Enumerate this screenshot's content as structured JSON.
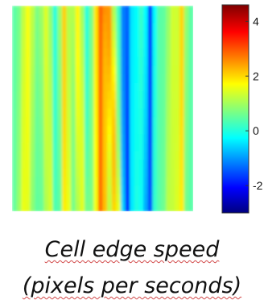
{
  "chart_data": {
    "type": "heatmap",
    "title": "",
    "xlabel": "",
    "ylabel": "",
    "colormap": "jet",
    "color_range": [
      -3,
      4.6
    ],
    "colorbar_ticks": [
      {
        "value": 4,
        "label": "4"
      },
      {
        "value": 2,
        "label": "2"
      },
      {
        "value": 0,
        "label": "0"
      },
      {
        "value": -2,
        "label": "-2"
      }
    ],
    "rows": 24,
    "cols": 40,
    "background_value": 0.5,
    "features": [
      {
        "col": 3,
        "value": 1.2,
        "width": 1.5,
        "drift": -0.6
      },
      {
        "col": 7,
        "value": 1.0,
        "width": 1.2,
        "drift": 0.8
      },
      {
        "col": 11,
        "value": 1.6,
        "width": 1.0,
        "drift": 0.4
      },
      {
        "col": 14,
        "value": 1.3,
        "width": 1.2,
        "drift": 1.0
      },
      {
        "col": 19,
        "value": 2.4,
        "width": 1.4,
        "drift": 0.2
      },
      {
        "col": 21,
        "value": 1.7,
        "width": 1.0,
        "drift": 1.4
      },
      {
        "col": 25,
        "value": -1.6,
        "width": 1.0,
        "drift": 0.1
      },
      {
        "col": 24,
        "value": -1.0,
        "width": 0.8,
        "drift": 0.6
      },
      {
        "col": 27,
        "value": -0.6,
        "width": 1.0,
        "drift": 0.7
      },
      {
        "col": 30,
        "value": -2.2,
        "width": 0.9,
        "drift": -0.3
      },
      {
        "col": 35,
        "value": 0.9,
        "width": 1.2,
        "drift": -0.5
      },
      {
        "col": 37,
        "value": 1.5,
        "width": 0.9,
        "drift": -0.3
      },
      {
        "col": 9,
        "value": -0.5,
        "width": 0.8,
        "drift": 0.3
      },
      {
        "col": 16,
        "value": -0.5,
        "width": 0.8,
        "drift": -0.4
      }
    ]
  },
  "caption": {
    "line1": "Cell edge speed",
    "line2": "(pixels per seconds)"
  }
}
